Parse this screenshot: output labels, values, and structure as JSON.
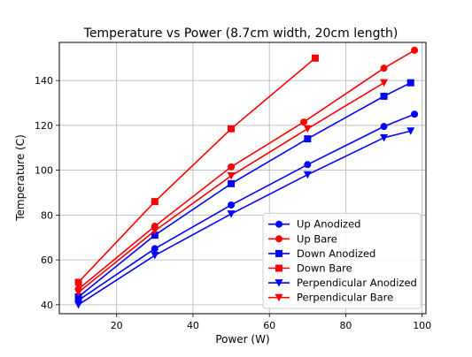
{
  "chart_data": {
    "type": "line",
    "title": "Temperature vs Power (8.7cm width, 20cm length)",
    "xlabel": "Power (W)",
    "ylabel": "Temperature (C)",
    "xlim": [
      5,
      101
    ],
    "ylim": [
      36,
      157
    ],
    "xticks": [
      20,
      40,
      60,
      80,
      100
    ],
    "yticks": [
      40,
      60,
      80,
      100,
      120,
      140
    ],
    "grid": true,
    "legend_position": "lower-right",
    "series": [
      {
        "name": "Up Anodized",
        "color": "#0000ff",
        "marker": "circle",
        "x": [
          10,
          30,
          50,
          70,
          90,
          98
        ],
        "y": [
          42,
          65,
          84.5,
          102.5,
          119.5,
          125
        ]
      },
      {
        "name": "Up Bare",
        "color": "#ff0000",
        "marker": "circle",
        "x": [
          10,
          30,
          50,
          69,
          90,
          98
        ],
        "y": [
          47,
          75,
          101.5,
          121.5,
          145.5,
          153.5
        ]
      },
      {
        "name": "Down Anodized",
        "color": "#0000ff",
        "marker": "square",
        "x": [
          10,
          30,
          50,
          70,
          90,
          97
        ],
        "y": [
          43.5,
          71,
          94,
          114,
          133,
          139
        ]
      },
      {
        "name": "Down Bare",
        "color": "#ff0000",
        "marker": "square",
        "x": [
          10,
          30,
          50,
          72
        ],
        "y": [
          50,
          86,
          118.5,
          150
        ]
      },
      {
        "name": "Perpendicular Anodized",
        "color": "#0000ff",
        "marker": "triangle-down",
        "x": [
          10,
          30,
          50,
          70,
          90,
          97
        ],
        "y": [
          40,
          62,
          80.5,
          98,
          114.5,
          117.5
        ]
      },
      {
        "name": "Perpendicular Bare",
        "color": "#ff0000",
        "marker": "triangle-down",
        "x": [
          10,
          30,
          50,
          70,
          90
        ],
        "y": [
          45.5,
          73,
          97.5,
          118.5,
          139
        ]
      }
    ]
  }
}
